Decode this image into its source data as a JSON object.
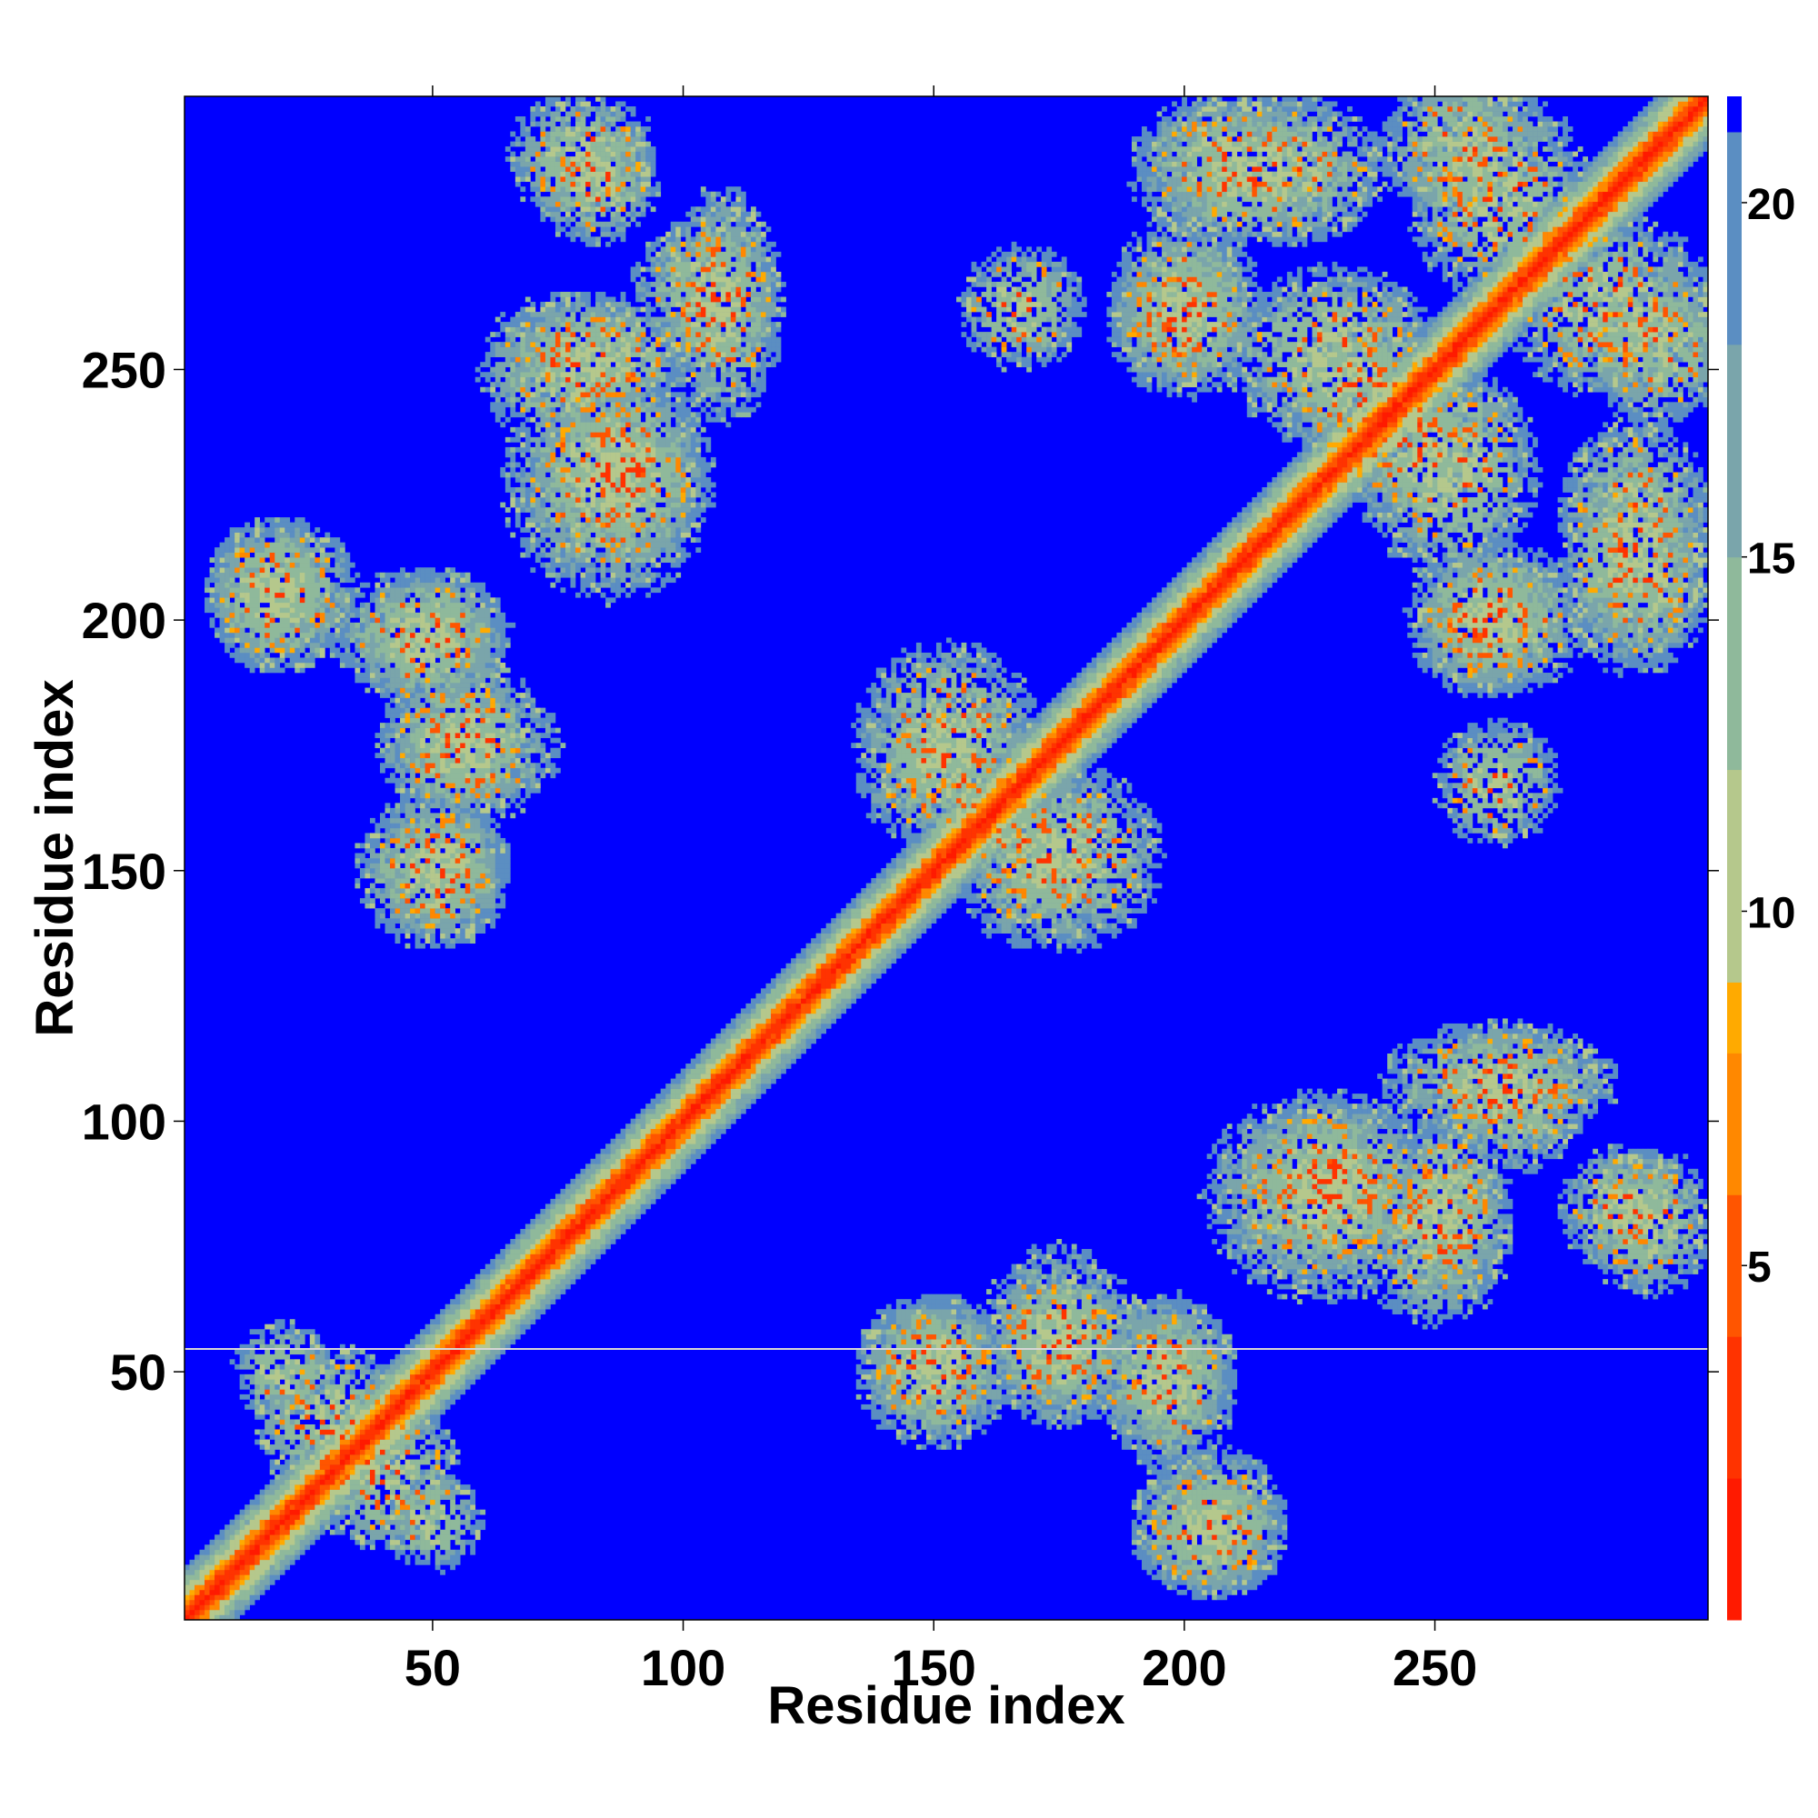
{
  "chart_data": {
    "type": "heatmap",
    "title": "",
    "xlabel": "Residue index",
    "ylabel": "Residue index",
    "xlim": [
      0.5,
      304.5
    ],
    "ylim": [
      0.5,
      304.5
    ],
    "x_ticks": [
      50,
      100,
      150,
      200,
      250
    ],
    "y_ticks": [
      50,
      100,
      150,
      200,
      250
    ],
    "colorbar": {
      "ticks": [
        5,
        10,
        15,
        20
      ],
      "range": [
        0,
        21.5
      ],
      "colors": {
        "0": "#ff1a00",
        "2": "#ff3300",
        "4": "#ff5500",
        "6": "#ff8800",
        "8": "#ffaa00",
        "9": "#b5c88c",
        "12": "#8fb99b",
        "15": "#7aa5ab",
        "18": "#5b8ec2",
        "21": "#0000ff"
      }
    },
    "matrix_size": 304,
    "diagonal_bandwidth": 10,
    "contact_regions": [
      {
        "x": [
          75,
          100
        ],
        "y": [
          215,
          245
        ]
      },
      {
        "x": [
          70,
          95
        ],
        "y": [
          245,
          260
        ]
      },
      {
        "x": [
          95,
          115
        ],
        "y": [
          255,
          275
        ]
      },
      {
        "x": [
          75,
          90
        ],
        "y": [
          280,
          295
        ]
      },
      {
        "x": [
          10,
          25
        ],
        "y": [
          195,
          215
        ]
      },
      {
        "x": [
          35,
          60
        ],
        "y": [
          190,
          205
        ]
      },
      {
        "x": [
          45,
          70
        ],
        "y": [
          165,
          185
        ]
      },
      {
        "x": [
          40,
          60
        ],
        "y": [
          140,
          160
        ]
      },
      {
        "x": [
          140,
          165
        ],
        "y": [
          160,
          180
        ]
      },
      {
        "x": [
          165,
          190
        ],
        "y": [
          140,
          165
        ]
      },
      {
        "x": [
          195,
          225
        ],
        "y": [
          280,
          300
        ]
      },
      {
        "x": [
          190,
          210
        ],
        "y": [
          250,
          270
        ]
      },
      {
        "x": [
          215,
          245
        ],
        "y": [
          240,
          265
        ]
      },
      {
        "x": [
          245,
          265
        ],
        "y": [
          285,
          304
        ]
      },
      {
        "x": [
          270,
          300
        ],
        "y": [
          250,
          275
        ]
      },
      {
        "x": [
          280,
          300
        ],
        "y": [
          200,
          235
        ]
      },
      {
        "x": [
          250,
          275
        ],
        "y": [
          190,
          210
        ]
      },
      {
        "x": [
          235,
          255
        ],
        "y": [
          225,
          245
        ]
      },
      {
        "x": [
          210,
          245
        ],
        "y": [
          70,
          100
        ]
      },
      {
        "x": [
          245,
          280
        ],
        "y": [
          100,
          115
        ]
      },
      {
        "x": [
          240,
          260
        ],
        "y": [
          65,
          90
        ]
      },
      {
        "x": [
          285,
          300
        ],
        "y": [
          70,
          90
        ]
      },
      {
        "x": [
          140,
          160
        ],
        "y": [
          45,
          60
        ]
      },
      {
        "x": [
          165,
          185
        ],
        "y": [
          45,
          65
        ]
      },
      {
        "x": [
          185,
          205
        ],
        "y": [
          40,
          60
        ]
      },
      {
        "x": [
          195,
          215
        ],
        "y": [
          10,
          30
        ]
      },
      {
        "x": [
          20,
          40
        ],
        "y": [
          30,
          50
        ]
      },
      {
        "x": [
          45,
          55
        ],
        "y": [
          15,
          25
        ]
      },
      {
        "x": [
          160,
          175
        ],
        "y": [
          255,
          270
        ]
      }
    ]
  }
}
